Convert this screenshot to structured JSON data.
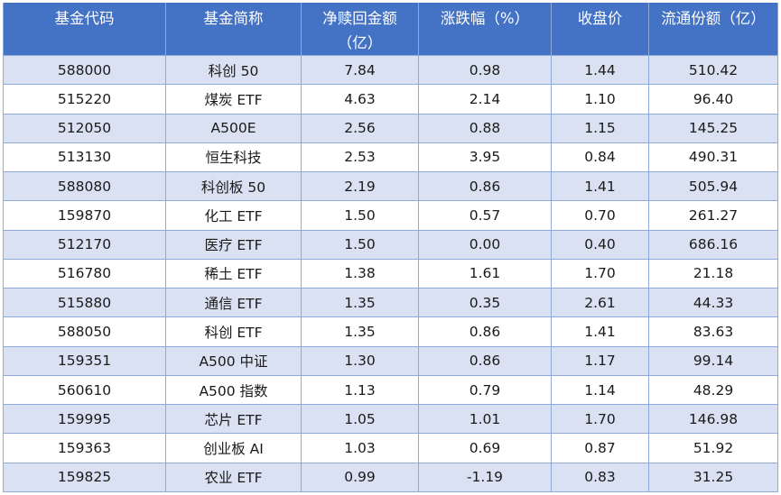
{
  "table": {
    "headers": [
      "基金代码",
      "基金简称",
      "净赎回金额（亿）",
      "涨跌幅（%）",
      "收盘价",
      "流通份额（亿）"
    ],
    "rows": [
      [
        "588000",
        "科创 50",
        "7.84",
        "0.98",
        "1.44",
        "510.42"
      ],
      [
        "515220",
        "煤炭 ETF",
        "4.63",
        "2.14",
        "1.10",
        "96.40"
      ],
      [
        "512050",
        "A500E",
        "2.56",
        "0.88",
        "1.15",
        "145.25"
      ],
      [
        "513130",
        "恒生科技",
        "2.53",
        "3.95",
        "0.84",
        "490.31"
      ],
      [
        "588080",
        "科创板 50",
        "2.19",
        "0.86",
        "1.41",
        "505.94"
      ],
      [
        "159870",
        "化工 ETF",
        "1.50",
        "0.57",
        "0.70",
        "261.27"
      ],
      [
        "512170",
        "医疗 ETF",
        "1.50",
        "0.00",
        "0.40",
        "686.16"
      ],
      [
        "516780",
        "稀土 ETF",
        "1.38",
        "1.61",
        "1.70",
        "21.18"
      ],
      [
        "515880",
        "通信 ETF",
        "1.35",
        "0.35",
        "2.61",
        "44.33"
      ],
      [
        "588050",
        "科创 ETF",
        "1.35",
        "0.86",
        "1.41",
        "83.63"
      ],
      [
        "159351",
        "A500 中证",
        "1.30",
        "0.86",
        "1.17",
        "99.14"
      ],
      [
        "560610",
        "A500 指数",
        "1.13",
        "0.79",
        "1.14",
        "48.29"
      ],
      [
        "159995",
        "芯片 ETF",
        "1.05",
        "1.01",
        "1.70",
        "146.98"
      ],
      [
        "159363",
        "创业板 AI",
        "1.03",
        "0.69",
        "0.87",
        "51.92"
      ],
      [
        "159825",
        "农业 ETF",
        "0.99",
        "-1.19",
        "0.83",
        "31.25"
      ]
    ]
  }
}
